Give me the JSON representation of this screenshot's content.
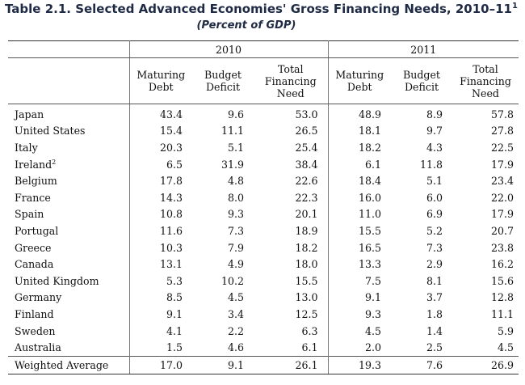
{
  "title": "Table 2.1. Selected Advanced Economies' Gross Financing Needs, 2010–11",
  "title_footnote": "1",
  "subtitle": "(Percent of GDP)",
  "years": [
    "2010",
    "2011"
  ],
  "columns": [
    "Maturing Debt",
    "Budget Deficit",
    "Total Financing Need"
  ],
  "rows": [
    {
      "country": "Japan",
      "footnote": "",
      "values": [
        "43.4",
        "9.6",
        "53.0",
        "48.9",
        "8.9",
        "57.8"
      ]
    },
    {
      "country": "United States",
      "footnote": "",
      "values": [
        "15.4",
        "11.1",
        "26.5",
        "18.1",
        "9.7",
        "27.8"
      ]
    },
    {
      "country": "Italy",
      "footnote": "",
      "values": [
        "20.3",
        "5.1",
        "25.4",
        "18.2",
        "4.3",
        "22.5"
      ]
    },
    {
      "country": "Ireland",
      "footnote": "2",
      "values": [
        "6.5",
        "31.9",
        "38.4",
        "6.1",
        "11.8",
        "17.9"
      ]
    },
    {
      "country": "Belgium",
      "footnote": "",
      "values": [
        "17.8",
        "4.8",
        "22.6",
        "18.4",
        "5.1",
        "23.4"
      ]
    },
    {
      "country": "France",
      "footnote": "",
      "values": [
        "14.3",
        "8.0",
        "22.3",
        "16.0",
        "6.0",
        "22.0"
      ]
    },
    {
      "country": "Spain",
      "footnote": "",
      "values": [
        "10.8",
        "9.3",
        "20.1",
        "11.0",
        "6.9",
        "17.9"
      ]
    },
    {
      "country": "Portugal",
      "footnote": "",
      "values": [
        "11.6",
        "7.3",
        "18.9",
        "15.5",
        "5.2",
        "20.7"
      ]
    },
    {
      "country": "Greece",
      "footnote": "",
      "values": [
        "10.3",
        "7.9",
        "18.2",
        "16.5",
        "7.3",
        "23.8"
      ]
    },
    {
      "country": "Canada",
      "footnote": "",
      "values": [
        "13.1",
        "4.9",
        "18.0",
        "13.3",
        "2.9",
        "16.2"
      ]
    },
    {
      "country": "United Kingdom",
      "footnote": "",
      "values": [
        "5.3",
        "10.2",
        "15.5",
        "7.5",
        "8.1",
        "15.6"
      ]
    },
    {
      "country": "Germany",
      "footnote": "",
      "values": [
        "8.5",
        "4.5",
        "13.0",
        "9.1",
        "3.7",
        "12.8"
      ]
    },
    {
      "country": "Finland",
      "footnote": "",
      "values": [
        "9.1",
        "3.4",
        "12.5",
        "9.3",
        "1.8",
        "11.1"
      ]
    },
    {
      "country": "Sweden",
      "footnote": "",
      "values": [
        "4.1",
        "2.2",
        "6.3",
        "4.5",
        "1.4",
        "5.9"
      ]
    },
    {
      "country": "Australia",
      "footnote": "",
      "values": [
        "1.5",
        "4.6",
        "6.1",
        "2.0",
        "2.5",
        "4.5"
      ]
    }
  ],
  "weighted_average": {
    "label": "Weighted Average",
    "values": [
      "17.0",
      "9.1",
      "26.1",
      "19.3",
      "7.6",
      "26.9"
    ]
  }
}
